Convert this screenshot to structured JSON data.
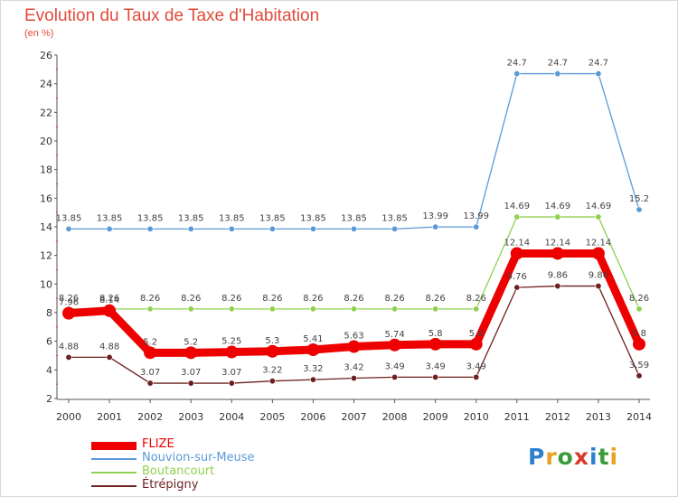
{
  "title": "Evolution du Taux de Taxe d'Habitation",
  "unit_label": "(en %)",
  "logo_text": "Proxiti",
  "chart_data": {
    "type": "line",
    "title": "Evolution du Taux de Taxe d'Habitation",
    "ylabel": "(en %)",
    "xlabel": "",
    "x": [
      "2000",
      "2001",
      "2002",
      "2003",
      "2004",
      "2005",
      "2006",
      "2007",
      "2008",
      "2009",
      "2010",
      "2011",
      "2012",
      "2013",
      "2014"
    ],
    "yticks": [
      2,
      4,
      6,
      8,
      10,
      12,
      14,
      16,
      18,
      20,
      22,
      24,
      26
    ],
    "ylim": [
      2,
      26
    ],
    "grid": false,
    "legend": "bottom-left",
    "series": [
      {
        "name": "FLIZE",
        "color": "#ee0000",
        "values": [
          7.96,
          8.14,
          5.2,
          5.2,
          5.25,
          5.3,
          5.41,
          5.63,
          5.74,
          5.8,
          5.8,
          12.14,
          12.14,
          12.14,
          5.8
        ],
        "labels": [
          "7.96",
          "8.14",
          "5.2",
          "5.2",
          "5.25",
          "5.3",
          "5.41",
          "5.63",
          "5.74",
          "5.8",
          "5.8",
          "12.14",
          "12.14",
          "12.14",
          "5.8"
        ]
      },
      {
        "name": "Nouvion-sur-Meuse",
        "color": "#5a9ad6",
        "values": [
          13.85,
          13.85,
          13.85,
          13.85,
          13.85,
          13.85,
          13.85,
          13.85,
          13.85,
          13.99,
          13.99,
          24.7,
          24.7,
          24.7,
          15.2
        ],
        "labels": [
          "13.85",
          "13.85",
          "13.85",
          "13.85",
          "13.85",
          "13.85",
          "13.85",
          "13.85",
          "13.85",
          "13.99",
          "13.99",
          "24.7",
          "24.7",
          "24.7",
          "15.2"
        ]
      },
      {
        "name": "Boutancourt",
        "color": "#8fd14f",
        "values": [
          8.26,
          8.26,
          8.26,
          8.26,
          8.26,
          8.26,
          8.26,
          8.26,
          8.26,
          8.26,
          8.26,
          14.69,
          14.69,
          14.69,
          8.26
        ],
        "labels": [
          "8.26",
          "8.26",
          "8.26",
          "8.26",
          "8.26",
          "8.26",
          "8.26",
          "8.26",
          "8.26",
          "8.26",
          "8.26",
          "14.69",
          "14.69",
          "14.69",
          "8.26"
        ]
      },
      {
        "name": "Étrépigny",
        "color": "#6e1f1f",
        "values": [
          4.88,
          4.88,
          3.07,
          3.07,
          3.07,
          3.22,
          3.32,
          3.42,
          3.49,
          3.49,
          3.49,
          9.76,
          9.86,
          9.86,
          3.59
        ],
        "labels": [
          "4.88",
          "4.88",
          "3.07",
          "3.07",
          "3.07",
          "3.22",
          "3.32",
          "3.42",
          "3.49",
          "3.49",
          "3.49",
          "9.76",
          "9.86",
          "9.86",
          "3.59"
        ]
      }
    ]
  }
}
